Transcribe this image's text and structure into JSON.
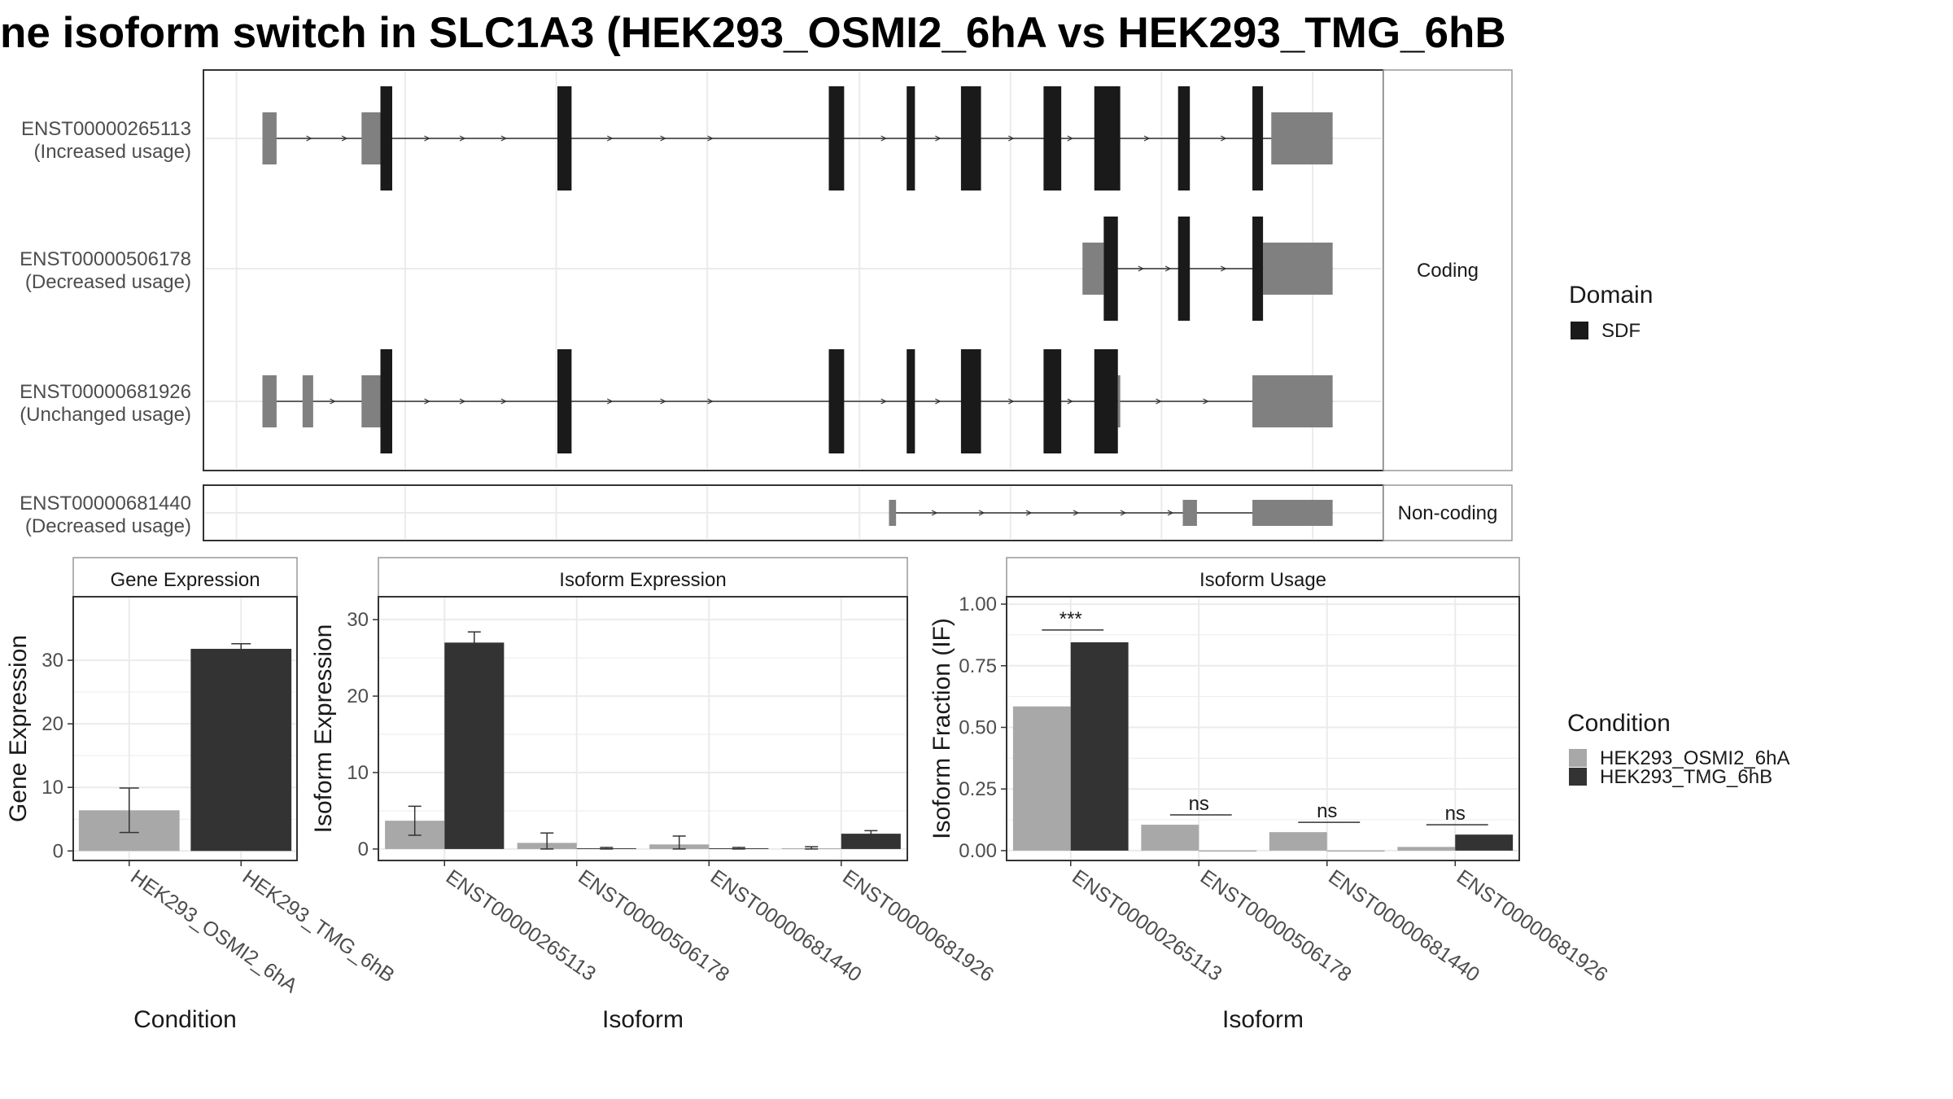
{
  "title": "ne isoform switch in SLC1A3 (HEK293_OSMI2_6hA vs HEK293_TMG_6hB",
  "colors": {
    "cond_a": "#a8a8a8",
    "cond_b": "#333333",
    "domain": "#1a1a1a",
    "utr": "#808080",
    "intron": "#333333",
    "grid": "#ebebeb",
    "border": "#333333",
    "strip_border": "#999999"
  },
  "transcripts": {
    "strip_coding": "Coding",
    "strip_noncoding": "Non-coding",
    "rows": [
      {
        "id": "ENST00000265113",
        "usage": "(Increased usage)",
        "group": "coding",
        "utr": [
          [
            0.05,
            0.062
          ],
          [
            0.134,
            0.15
          ],
          [
            0.905,
            0.957
          ]
        ],
        "cds": [
          [
            0.15,
            0.16
          ],
          [
            0.3,
            0.312
          ],
          [
            0.53,
            0.543
          ],
          [
            0.596,
            0.603
          ],
          [
            0.642,
            0.659
          ],
          [
            0.712,
            0.727
          ],
          [
            0.755,
            0.777
          ],
          [
            0.826,
            0.836
          ],
          [
            0.889,
            0.898
          ]
        ],
        "arrows": [
          0.09,
          0.12,
          0.19,
          0.22,
          0.255,
          0.345,
          0.39,
          0.43,
          0.577,
          0.623,
          0.685,
          0.735,
          0.8,
          0.865,
          0.915
        ]
      },
      {
        "id": "ENST00000506178",
        "usage": "(Decreased usage)",
        "group": "coding",
        "utr": [
          [
            0.745,
            0.763
          ],
          [
            0.898,
            0.957
          ]
        ],
        "cds": [
          [
            0.763,
            0.775
          ],
          [
            0.826,
            0.836
          ],
          [
            0.889,
            0.898
          ]
        ],
        "arrows": [
          0.795,
          0.818,
          0.865
        ]
      },
      {
        "id": "ENST00000681926",
        "usage": "(Unchanged usage)",
        "group": "coding",
        "utr": [
          [
            0.05,
            0.062
          ],
          [
            0.084,
            0.093
          ],
          [
            0.134,
            0.15
          ],
          [
            0.775,
            0.777
          ],
          [
            0.889,
            0.957
          ]
        ],
        "cds": [
          [
            0.15,
            0.16
          ],
          [
            0.3,
            0.312
          ],
          [
            0.53,
            0.543
          ],
          [
            0.596,
            0.603
          ],
          [
            0.642,
            0.659
          ],
          [
            0.712,
            0.727
          ],
          [
            0.755,
            0.775
          ]
        ],
        "arrows": [
          0.11,
          0.19,
          0.22,
          0.255,
          0.345,
          0.39,
          0.43,
          0.577,
          0.623,
          0.685,
          0.735,
          0.81,
          0.85
        ]
      },
      {
        "id": "ENST00000681440",
        "usage": "(Decreased usage)",
        "group": "noncoding",
        "utr": [
          [
            0.581,
            0.587
          ],
          [
            0.83,
            0.842
          ],
          [
            0.889,
            0.957
          ]
        ],
        "cds": [],
        "arrows": [
          0.62,
          0.66,
          0.7,
          0.74,
          0.78,
          0.82
        ]
      }
    ]
  },
  "legend_domain": {
    "title": "Domain",
    "items": [
      "SDF"
    ]
  },
  "legend_condition": {
    "title": "Condition",
    "items": [
      "HEK293_OSMI2_6hA",
      "HEK293_TMG_6hB"
    ]
  },
  "chart_data": [
    {
      "type": "bar",
      "title": "Gene Expression",
      "xlabel": "Condition",
      "ylabel": "Gene Expression",
      "categories": [
        "HEK293_OSMI2_6hA",
        "HEK293_TMG_6hB"
      ],
      "values": [
        6.4,
        31.8
      ],
      "error": [
        [
          2.9,
          9.9
        ],
        [
          31.0,
          32.6
        ]
      ],
      "ylim": [
        -1.5,
        40
      ],
      "yticks": [
        0,
        10,
        20,
        30
      ],
      "grid": true
    },
    {
      "type": "bar",
      "title": "Isoform Expression",
      "xlabel": "Isoform",
      "ylabel": "Isoform Expression",
      "categories": [
        "ENST00000265113",
        "ENST00000506178",
        "ENST00000681440",
        "ENST00000681926"
      ],
      "series": [
        {
          "name": "HEK293_OSMI2_6hA",
          "values": [
            3.7,
            0.8,
            0.6,
            0.1
          ],
          "error": [
            [
              1.8,
              5.6
            ],
            [
              0.0,
              2.1
            ],
            [
              0.0,
              1.7
            ],
            [
              0.0,
              0.3
            ]
          ]
        },
        {
          "name": "HEK293_TMG_6hB",
          "values": [
            27.0,
            0.1,
            0.1,
            2.0
          ],
          "error": [
            [
              25.6,
              28.4
            ],
            [
              0.0,
              0.2
            ],
            [
              0.0,
              0.2
            ],
            [
              1.5,
              2.4
            ]
          ]
        }
      ],
      "ylim": [
        -1.5,
        33
      ],
      "yticks": [
        0,
        10,
        20,
        30
      ],
      "grid": true
    },
    {
      "type": "bar",
      "title": "Isoform Usage",
      "xlabel": "Isoform",
      "ylabel": "Isoform Fraction (IF)",
      "categories": [
        "ENST00000265113",
        "ENST00000506178",
        "ENST00000681440",
        "ENST00000681926"
      ],
      "series": [
        {
          "name": "HEK293_OSMI2_6hA",
          "values": [
            0.585,
            0.105,
            0.075,
            0.015
          ]
        },
        {
          "name": "HEK293_TMG_6hB",
          "values": [
            0.845,
            0.0,
            0.0,
            0.065
          ]
        }
      ],
      "significance": [
        {
          "label": "***",
          "y": 0.895
        },
        {
          "label": "ns",
          "y": 0.145
        },
        {
          "label": "ns",
          "y": 0.115
        },
        {
          "label": "ns",
          "y": 0.105
        }
      ],
      "ylim": [
        -0.04,
        1.03
      ],
      "yticks": [
        0.0,
        0.25,
        0.5,
        0.75,
        1.0
      ],
      "ytick_labels": [
        "0.00",
        "0.25",
        "0.50",
        "0.75",
        "1.00"
      ],
      "grid": true
    }
  ]
}
